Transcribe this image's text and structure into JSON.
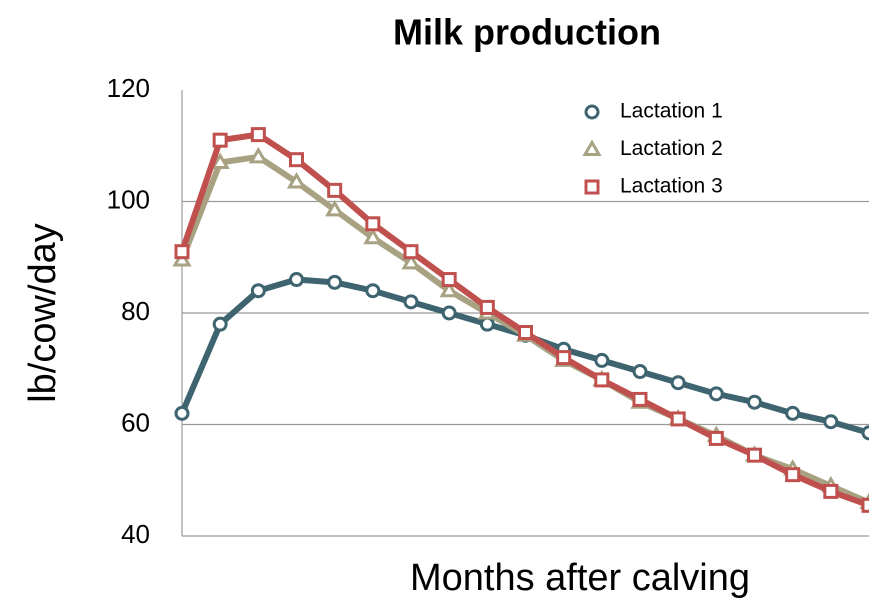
{
  "chart_data": {
    "type": "line",
    "title": "Milk production",
    "xlabel": "Months after calving",
    "ylabel": "lb/cow/day",
    "categories": [
      null,
      null,
      null,
      null,
      null,
      null,
      null,
      null,
      null,
      null,
      null,
      null,
      null,
      null,
      null,
      null,
      null,
      null,
      null
    ],
    "series": [
      {
        "name": "Lactation 1",
        "color": "#3e6470",
        "marker": "circle",
        "values": [
          62,
          78,
          84,
          86,
          85.5,
          84,
          82,
          80,
          78,
          76,
          73.5,
          71.5,
          69.5,
          67.5,
          65.5,
          64,
          62,
          60.5,
          58.5
        ]
      },
      {
        "name": "Lactation 2",
        "color": "#a8a283",
        "marker": "triangle",
        "values": [
          89.5,
          107,
          108,
          103.5,
          98.5,
          93.5,
          89,
          84,
          80,
          76,
          71.5,
          68,
          64,
          61,
          58,
          54.5,
          52,
          49,
          46
        ]
      },
      {
        "name": "Lactation 3",
        "color": "#c0504d",
        "marker": "square",
        "values": [
          91,
          111,
          112,
          107.5,
          102,
          96,
          91,
          86,
          81,
          76.5,
          72,
          68,
          64.5,
          61,
          57.5,
          54.5,
          51,
          48,
          45.5
        ]
      }
    ],
    "ylim": [
      40,
      120
    ],
    "yticks": [
      40,
      60,
      80,
      100,
      120
    ],
    "grid": true,
    "legend": "upper right"
  }
}
